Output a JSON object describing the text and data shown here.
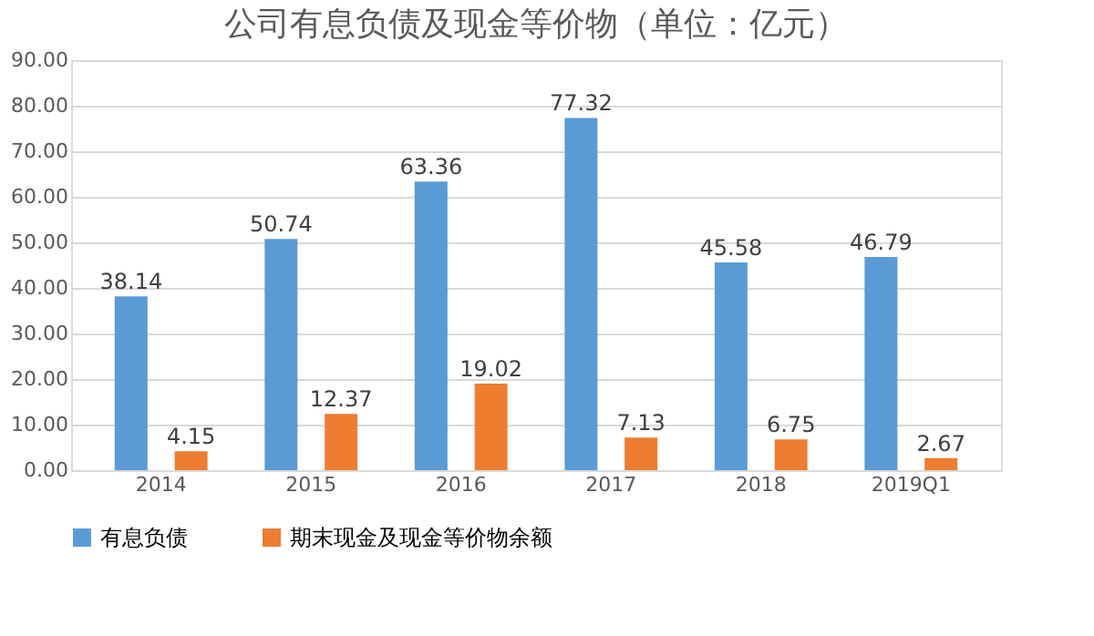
{
  "chart_data": {
    "type": "bar",
    "title": "公司有息负债及现金等价物（单位：亿元）",
    "categories": [
      "2014",
      "2015",
      "2016",
      "2017",
      "2018",
      "2019Q1"
    ],
    "series": [
      {
        "name": "有息负债",
        "color": "#5b9bd5",
        "values": [
          38.14,
          50.74,
          63.36,
          77.32,
          45.58,
          46.79
        ]
      },
      {
        "name": "期末现金及现金等价物余额",
        "color": "#ed7d31",
        "values": [
          4.15,
          12.37,
          19.02,
          7.13,
          6.75,
          2.67
        ]
      }
    ],
    "ylim": [
      0,
      90
    ],
    "yticks": [
      {
        "value": 0,
        "label": "0.00"
      },
      {
        "value": 10,
        "label": "10.00"
      },
      {
        "value": 20,
        "label": "20.00"
      },
      {
        "value": 30,
        "label": "30.00"
      },
      {
        "value": 40,
        "label": "40.00"
      },
      {
        "value": 50,
        "label": "50.00"
      },
      {
        "value": 60,
        "label": "60.00"
      },
      {
        "value": 70,
        "label": "70.00"
      },
      {
        "value": 80,
        "label": "80.00"
      },
      {
        "value": 90,
        "label": "90.00"
      }
    ],
    "grid": "y",
    "legend": "bottom",
    "data_labels": true
  }
}
